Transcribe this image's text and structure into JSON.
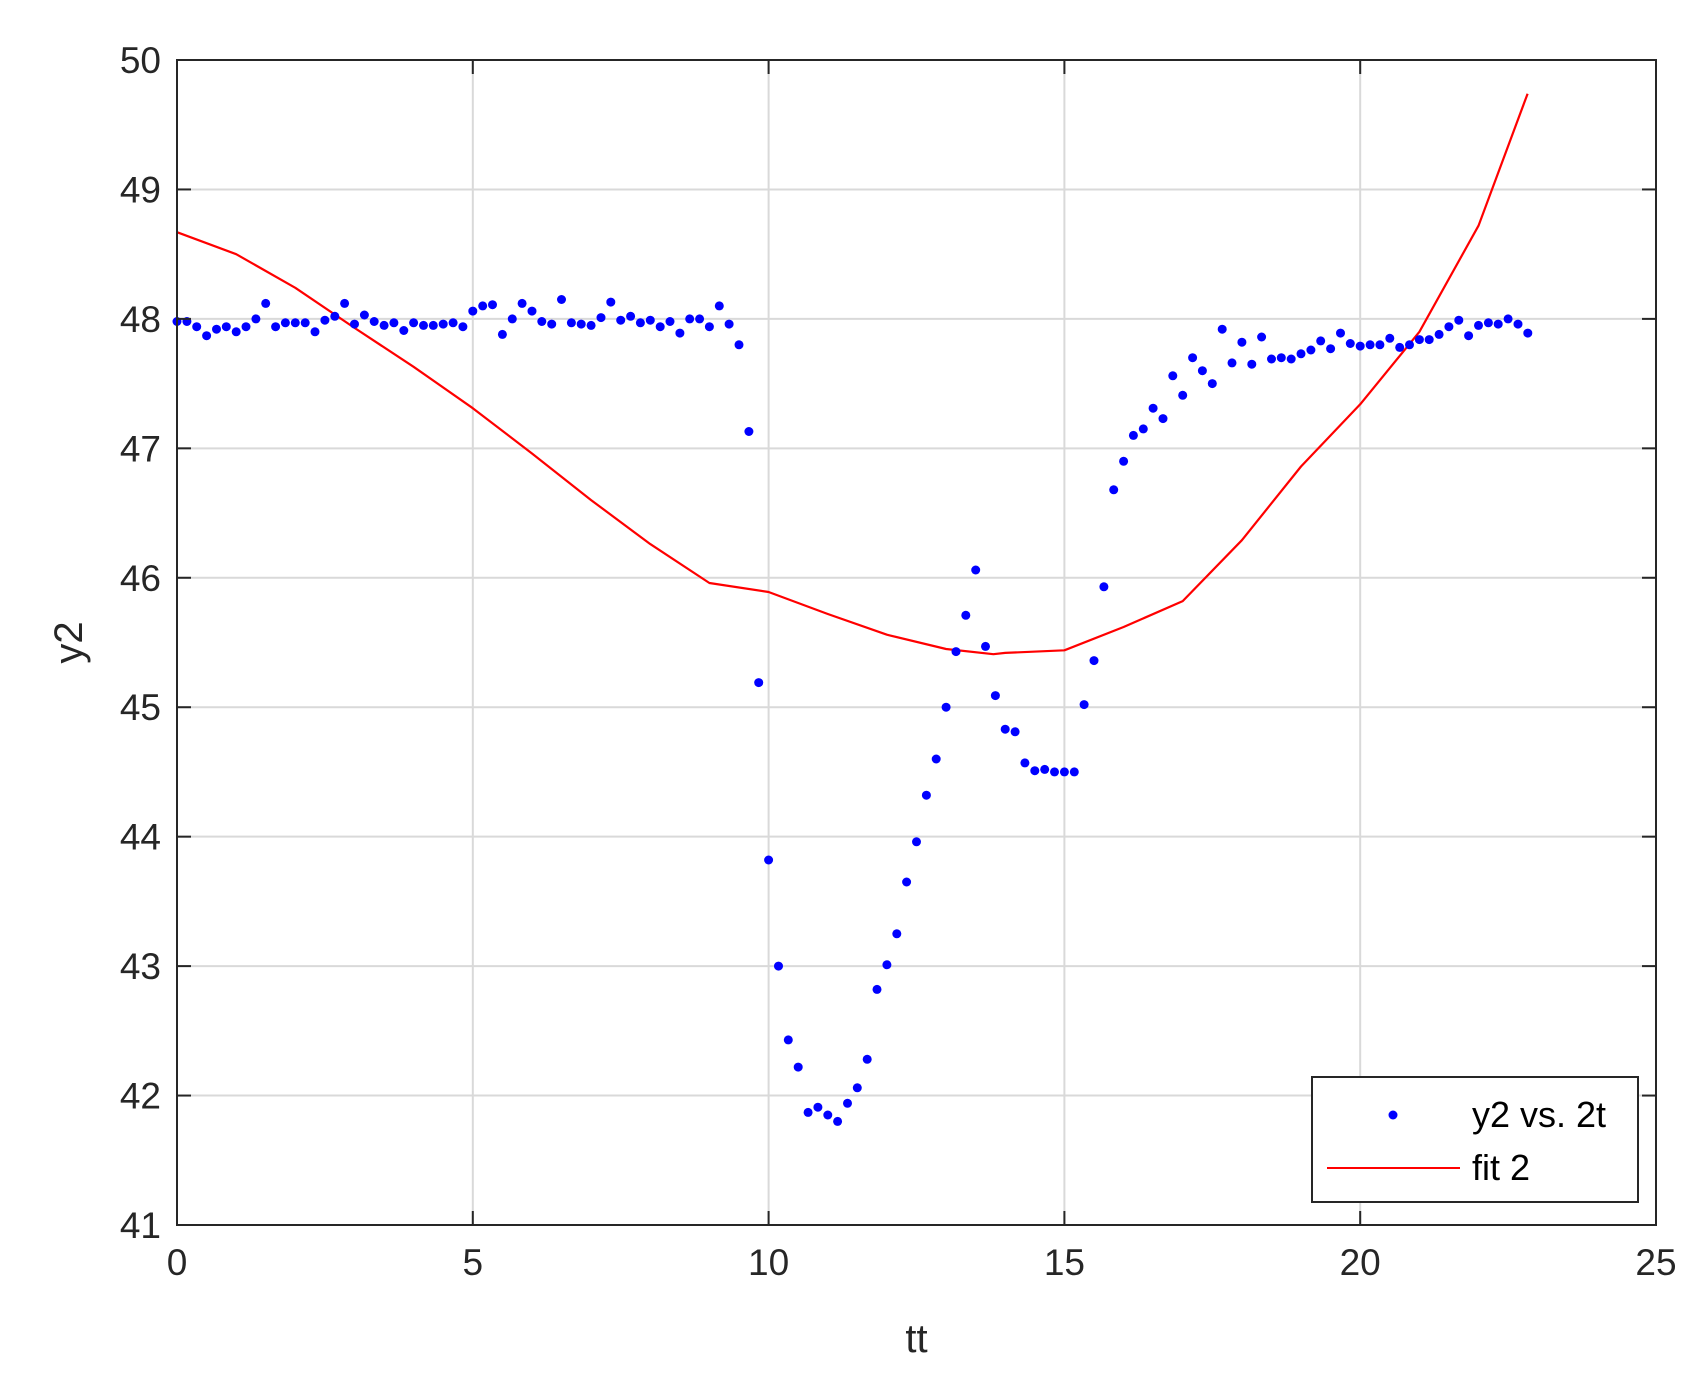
{
  "colors": {
    "scatter": "#0000ff",
    "fit": "#ff0000",
    "axis": "#262626",
    "grid": "#d9d9d9",
    "background": "#ffffff"
  },
  "chart_data": {
    "type": "scatter",
    "title": "",
    "xlabel": "tt",
    "ylabel": "y2",
    "xlim": [
      0,
      25
    ],
    "ylim": [
      41,
      50
    ],
    "xticks": [
      "0",
      "5",
      "10",
      "15",
      "20",
      "25"
    ],
    "yticks": [
      "41",
      "42",
      "43",
      "44",
      "45",
      "46",
      "47",
      "48",
      "49",
      "50"
    ],
    "grid": true,
    "legend_position": "bottom-right",
    "series": [
      {
        "name": "y2 vs. 2t",
        "kind": "scatter",
        "color": "#0000ff",
        "x": [
          0.0,
          0.167,
          0.333,
          0.5,
          0.667,
          0.833,
          1.0,
          1.167,
          1.333,
          1.5,
          1.667,
          1.833,
          2.0,
          2.167,
          2.333,
          2.5,
          2.667,
          2.833,
          3.0,
          3.167,
          3.333,
          3.5,
          3.667,
          3.833,
          4.0,
          4.167,
          4.333,
          4.5,
          4.667,
          4.833,
          5.0,
          5.167,
          5.333,
          5.5,
          5.667,
          5.833,
          6.0,
          6.167,
          6.333,
          6.5,
          6.667,
          6.833,
          7.0,
          7.167,
          7.333,
          7.5,
          7.667,
          7.833,
          8.0,
          8.167,
          8.333,
          8.5,
          8.667,
          8.833,
          9.0,
          9.167,
          9.333,
          9.5,
          9.667,
          9.833,
          10.0,
          10.167,
          10.333,
          10.5,
          10.667,
          10.833,
          11.0,
          11.167,
          11.333,
          11.5,
          11.667,
          11.833,
          12.0,
          12.167,
          12.333,
          12.5,
          12.667,
          12.833,
          13.0,
          13.167,
          13.333,
          13.5,
          13.667,
          13.833,
          14.0,
          14.167,
          14.333,
          14.5,
          14.667,
          14.833,
          15.0,
          15.167,
          15.333,
          15.5,
          15.667,
          15.833,
          16.0,
          16.167,
          16.333,
          16.5,
          16.667,
          16.833,
          17.0,
          17.167,
          17.333,
          17.5,
          17.667,
          17.833,
          18.0,
          18.167,
          18.333,
          18.5,
          18.667,
          18.833,
          19.0,
          19.167,
          19.333,
          19.5,
          19.667,
          19.833,
          20.0,
          20.167,
          20.333,
          20.5,
          20.667,
          20.833,
          21.0,
          21.167,
          21.333,
          21.5,
          21.667,
          21.833,
          22.0,
          22.167,
          22.333,
          22.5,
          22.667,
          22.833
        ],
        "y": [
          47.98,
          47.98,
          47.94,
          47.87,
          47.92,
          47.94,
          47.9,
          47.94,
          48.0,
          48.12,
          47.94,
          47.97,
          47.97,
          47.97,
          47.9,
          47.99,
          48.02,
          48.12,
          47.96,
          48.03,
          47.98,
          47.95,
          47.97,
          47.91,
          47.97,
          47.95,
          47.95,
          47.96,
          47.97,
          47.94,
          48.06,
          48.1,
          48.11,
          47.88,
          48.0,
          48.12,
          48.06,
          47.98,
          47.96,
          48.15,
          47.97,
          47.96,
          47.95,
          48.01,
          48.13,
          47.99,
          48.02,
          47.97,
          47.99,
          47.94,
          47.98,
          47.89,
          48.0,
          48.0,
          47.94,
          48.1,
          47.96,
          47.8,
          47.13,
          45.19,
          43.82,
          43.0,
          42.43,
          42.22,
          41.87,
          41.91,
          41.85,
          41.8,
          41.94,
          42.06,
          42.28,
          42.82,
          43.01,
          43.25,
          43.65,
          43.96,
          44.32,
          44.6,
          45.0,
          45.43,
          45.71,
          46.06,
          45.47,
          45.09,
          44.83,
          44.81,
          44.57,
          44.51,
          44.52,
          44.5,
          44.5,
          44.5,
          45.02,
          45.36,
          45.93,
          46.68,
          46.9,
          47.1,
          47.15,
          47.31,
          47.23,
          47.56,
          47.41,
          47.7,
          47.6,
          47.5,
          47.92,
          47.66,
          47.82,
          47.65,
          47.86,
          47.69,
          47.7,
          47.69,
          47.73,
          47.76,
          47.83,
          47.77,
          47.89,
          47.81,
          47.79,
          47.8,
          47.8,
          47.85,
          47.78,
          47.8,
          47.84,
          47.84,
          47.88,
          47.94,
          47.99,
          47.87,
          47.95,
          47.97,
          47.96,
          48.0,
          47.96,
          47.89
        ]
      },
      {
        "name": "fit 2",
        "kind": "line",
        "color": "#ff0000",
        "x": [
          0,
          1,
          2,
          3,
          4,
          5,
          6,
          7,
          8,
          9,
          10,
          11,
          12,
          13,
          13.8,
          14,
          15,
          16,
          17,
          18,
          19,
          20,
          21,
          22,
          22.83
        ],
        "y": [
          48.67,
          48.5,
          48.24,
          47.93,
          47.63,
          47.31,
          46.96,
          46.6,
          46.26,
          45.96,
          45.89,
          45.72,
          45.56,
          45.45,
          45.41,
          45.42,
          45.44,
          45.62,
          45.82,
          46.29,
          46.86,
          47.34,
          47.9,
          48.72,
          49.74
        ]
      }
    ]
  }
}
